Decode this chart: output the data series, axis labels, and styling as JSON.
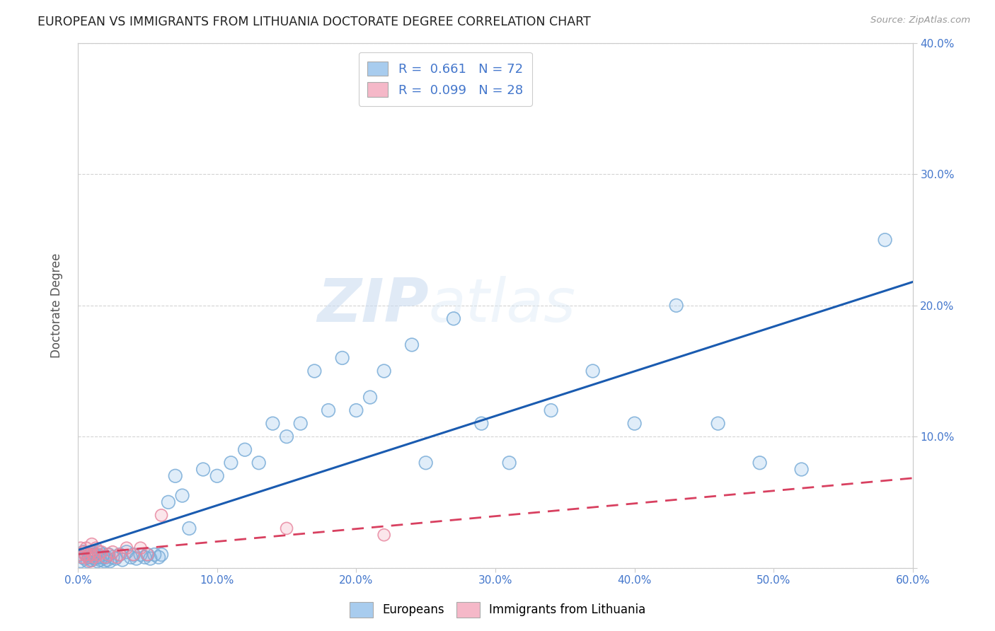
{
  "title": "EUROPEAN VS IMMIGRANTS FROM LITHUANIA DOCTORATE DEGREE CORRELATION CHART",
  "source": "Source: ZipAtlas.com",
  "ylabel": "Doctorate Degree",
  "xlim": [
    0,
    0.6
  ],
  "ylim": [
    0,
    0.4
  ],
  "xticks": [
    0.0,
    0.1,
    0.2,
    0.3,
    0.4,
    0.5,
    0.6
  ],
  "yticks": [
    0.0,
    0.1,
    0.2,
    0.3,
    0.4
  ],
  "xtick_labels": [
    "0.0%",
    "10.0%",
    "20.0%",
    "30.0%",
    "40.0%",
    "50.0%",
    "60.0%"
  ],
  "ytick_labels": [
    "",
    "10.0%",
    "20.0%",
    "30.0%",
    "40.0%"
  ],
  "blue_color": "#A8CCEE",
  "blue_edge_color": "#7AADD8",
  "pink_color": "#F5B8C8",
  "pink_edge_color": "#E888A0",
  "blue_line_color": "#1A5BB0",
  "pink_line_color": "#D84060",
  "R_blue": 0.661,
  "N_blue": 72,
  "R_pink": 0.099,
  "N_pink": 28,
  "blue_x": [
    0.001,
    0.002,
    0.003,
    0.004,
    0.005,
    0.006,
    0.007,
    0.008,
    0.009,
    0.01,
    0.01,
    0.01,
    0.011,
    0.012,
    0.013,
    0.014,
    0.015,
    0.015,
    0.016,
    0.017,
    0.018,
    0.019,
    0.02,
    0.021,
    0.022,
    0.023,
    0.025,
    0.027,
    0.03,
    0.032,
    0.035,
    0.038,
    0.04,
    0.042,
    0.045,
    0.048,
    0.05,
    0.052,
    0.055,
    0.058,
    0.06,
    0.065,
    0.07,
    0.075,
    0.08,
    0.09,
    0.1,
    0.11,
    0.12,
    0.13,
    0.14,
    0.15,
    0.16,
    0.17,
    0.18,
    0.19,
    0.2,
    0.21,
    0.22,
    0.24,
    0.25,
    0.27,
    0.29,
    0.31,
    0.34,
    0.37,
    0.4,
    0.43,
    0.46,
    0.49,
    0.52,
    0.58
  ],
  "blue_y": [
    0.01,
    0.005,
    0.008,
    0.012,
    0.007,
    0.01,
    0.005,
    0.008,
    0.01,
    0.006,
    0.012,
    0.008,
    0.01,
    0.007,
    0.01,
    0.005,
    0.008,
    0.012,
    0.006,
    0.008,
    0.01,
    0.005,
    0.008,
    0.006,
    0.01,
    0.005,
    0.008,
    0.007,
    0.01,
    0.006,
    0.012,
    0.008,
    0.01,
    0.007,
    0.01,
    0.008,
    0.01,
    0.007,
    0.01,
    0.008,
    0.01,
    0.05,
    0.07,
    0.055,
    0.03,
    0.075,
    0.07,
    0.08,
    0.09,
    0.08,
    0.11,
    0.1,
    0.11,
    0.15,
    0.12,
    0.16,
    0.12,
    0.13,
    0.15,
    0.17,
    0.08,
    0.19,
    0.11,
    0.08,
    0.12,
    0.15,
    0.11,
    0.2,
    0.11,
    0.08,
    0.075,
    0.25
  ],
  "pink_x": [
    0.001,
    0.002,
    0.003,
    0.004,
    0.005,
    0.006,
    0.007,
    0.008,
    0.009,
    0.01,
    0.01,
    0.011,
    0.012,
    0.013,
    0.015,
    0.017,
    0.02,
    0.022,
    0.025,
    0.028,
    0.03,
    0.035,
    0.04,
    0.045,
    0.05,
    0.06,
    0.15,
    0.22
  ],
  "pink_y": [
    0.01,
    0.015,
    0.008,
    0.012,
    0.01,
    0.015,
    0.008,
    0.01,
    0.005,
    0.012,
    0.018,
    0.01,
    0.008,
    0.015,
    0.01,
    0.012,
    0.008,
    0.01,
    0.012,
    0.008,
    0.01,
    0.015,
    0.01,
    0.015,
    0.01,
    0.04,
    0.03,
    0.025
  ],
  "background_color": "#ffffff",
  "grid_color": "#d0d0d0",
  "watermark_zip": "ZIP",
  "watermark_atlas": "atlas",
  "tick_color": "#4477CC"
}
